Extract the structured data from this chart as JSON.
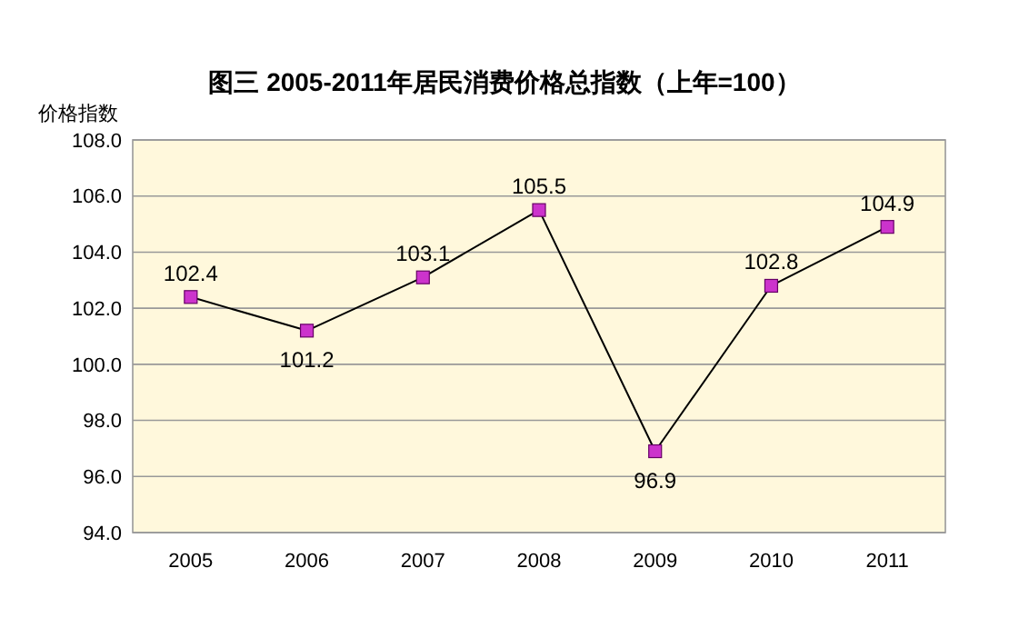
{
  "chart_data": {
    "type": "line",
    "title": "图三  2005-2011年居民消费价格总指数（上年=100）",
    "ylabel": "价格指数",
    "categories": [
      "2005",
      "2006",
      "2007",
      "2008",
      "2009",
      "2010",
      "2011"
    ],
    "series": [
      {
        "color": "#000000",
        "values": [
          102.4,
          101.2,
          103.1,
          105.5,
          96.9,
          102.8,
          104.9
        ]
      }
    ],
    "ylim": [
      94,
      108
    ],
    "yticks": [
      {
        "value": 94,
        "label": "94.0"
      },
      {
        "value": 96,
        "label": "96.0"
      },
      {
        "value": 98,
        "label": "98.0"
      },
      {
        "value": 100,
        "label": "100.0"
      },
      {
        "value": 102,
        "label": "102.0"
      },
      {
        "value": 104,
        "label": "104.0"
      },
      {
        "value": 106,
        "label": "106.0"
      },
      {
        "value": 108,
        "label": "108.0"
      }
    ],
    "grid": "y",
    "marker": "square",
    "line_style": "solid",
    "data_labels": true
  }
}
